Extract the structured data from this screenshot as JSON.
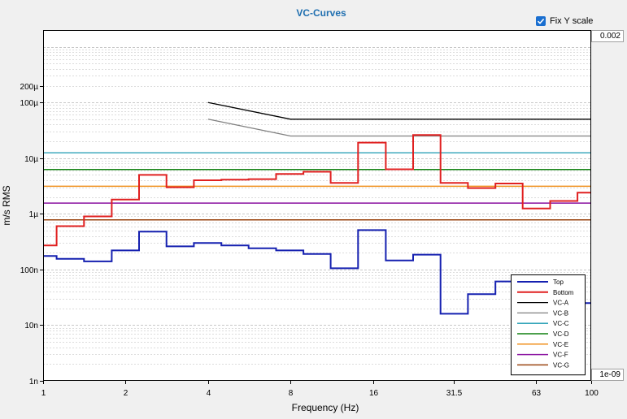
{
  "ui": {
    "fix_y_scale_label": "Fix Y scale",
    "fix_y_scale_checked": true,
    "y_max_value": "0.002",
    "y_min_value": "1e-09"
  },
  "chart_data": {
    "type": "line",
    "title": "VC-Curves",
    "xlabel": "Frequency (Hz)",
    "ylabel": "m/s RMS",
    "x_scale": "log",
    "y_scale": "log",
    "xlim": [
      1,
      100
    ],
    "ylim": [
      1e-09,
      0.002
    ],
    "x_ticks": [
      {
        "v": 1,
        "label": "1"
      },
      {
        "v": 2,
        "label": "2"
      },
      {
        "v": 4,
        "label": "4"
      },
      {
        "v": 8,
        "label": "8"
      },
      {
        "v": 16,
        "label": "16"
      },
      {
        "v": 31.5,
        "label": "31.5"
      },
      {
        "v": 63,
        "label": "63"
      },
      {
        "v": 100,
        "label": "100"
      }
    ],
    "y_ticks": [
      {
        "v": 1e-09,
        "label": "1n"
      },
      {
        "v": 1e-08,
        "label": "10n"
      },
      {
        "v": 1e-07,
        "label": "100n"
      },
      {
        "v": 1e-06,
        "label": "1µ"
      },
      {
        "v": 1e-05,
        "label": "10µ"
      },
      {
        "v": 0.0001,
        "label": "100µ"
      },
      {
        "v": 0.0002,
        "label": "200µ"
      }
    ],
    "grid": true,
    "legend_position": "bottom-right",
    "series": [
      {
        "name": "Top",
        "color": "#1520b0",
        "width": 2,
        "step": true,
        "edges": [
          1,
          1.12,
          1.41,
          1.78,
          2.24,
          2.82,
          3.55,
          4.47,
          5.62,
          7.08,
          8.91,
          11.2,
          14.1,
          17.8,
          22.4,
          28.2,
          35.5,
          44.7,
          56.2,
          70.8,
          89.1,
          100
        ],
        "values": [
          1.75e-07,
          1.55e-07,
          1.4e-07,
          2.2e-07,
          4.8e-07,
          2.6e-07,
          3e-07,
          2.7e-07,
          2.4e-07,
          2.2e-07,
          1.9e-07,
          1.05e-07,
          5.1e-07,
          1.45e-07,
          1.85e-07,
          1.6e-08,
          3.6e-08,
          6.1e-08,
          6.1e-08,
          4.6e-08,
          2.5e-08
        ]
      },
      {
        "name": "Bottom",
        "color": "#e02020",
        "width": 2,
        "step": true,
        "edges": [
          1,
          1.12,
          1.41,
          1.78,
          2.24,
          2.82,
          3.55,
          4.47,
          5.62,
          7.08,
          8.91,
          11.2,
          14.1,
          17.8,
          22.4,
          28.2,
          35.5,
          44.7,
          56.2,
          70.8,
          89.1,
          100
        ],
        "values": [
          2.7e-07,
          6e-07,
          9e-07,
          1.8e-06,
          5e-06,
          3e-06,
          4e-06,
          4.1e-06,
          4.2e-06,
          5.2e-06,
          5.7e-06,
          3.6e-06,
          1.9e-05,
          6.3e-06,
          2.6e-05,
          3.6e-06,
          2.9e-06,
          3.5e-06,
          1.25e-06,
          1.7e-06,
          2.4e-06
        ]
      },
      {
        "name": "VC-A",
        "color": "#000000",
        "width": 1.3,
        "x": [
          4,
          8,
          100
        ],
        "values": [
          0.0001,
          5e-05,
          5e-05
        ]
      },
      {
        "name": "VC-B",
        "color": "#808080",
        "width": 1.3,
        "x": [
          4,
          8,
          100
        ],
        "values": [
          5e-05,
          2.5e-05,
          2.5e-05
        ]
      },
      {
        "name": "VC-C",
        "color": "#1a9ab0",
        "width": 1.3,
        "x": [
          1,
          100
        ],
        "values": [
          1.25e-05,
          1.25e-05
        ]
      },
      {
        "name": "VC-D",
        "color": "#108010",
        "width": 1.5,
        "x": [
          1,
          100
        ],
        "values": [
          6.25e-06,
          6.25e-06
        ]
      },
      {
        "name": "VC-E",
        "color": "#f0901c",
        "width": 1.5,
        "x": [
          1,
          100
        ],
        "values": [
          3.12e-06,
          3.12e-06
        ]
      },
      {
        "name": "VC-F",
        "color": "#8a10a0",
        "width": 1.5,
        "x": [
          1,
          100
        ],
        "values": [
          1.56e-06,
          1.56e-06
        ]
      },
      {
        "name": "VC-G",
        "color": "#9a4410",
        "width": 1.5,
        "x": [
          1,
          100
        ],
        "values": [
          7.8e-07,
          7.8e-07
        ]
      }
    ]
  }
}
